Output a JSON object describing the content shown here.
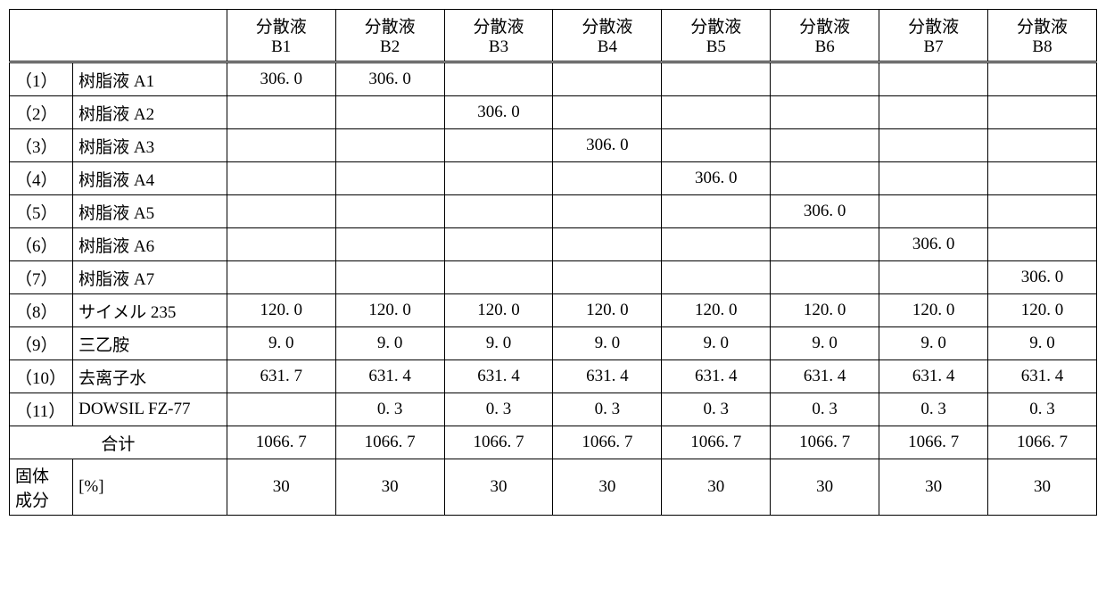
{
  "table": {
    "type": "table",
    "border_color": "#000000",
    "background_color": "#ffffff",
    "font_size_pt": 14,
    "header_line1": "分散液",
    "columns": [
      "B1",
      "B2",
      "B3",
      "B4",
      "B5",
      "B6",
      "B7",
      "B8"
    ],
    "rows": [
      {
        "idx": "（1）",
        "label": "树脂液 A1",
        "vals": [
          "306. 0",
          "306. 0",
          "",
          "",
          "",
          "",
          "",
          ""
        ]
      },
      {
        "idx": "（2）",
        "label": "树脂液 A2",
        "vals": [
          "",
          "",
          "306. 0",
          "",
          "",
          "",
          "",
          ""
        ]
      },
      {
        "idx": "（3）",
        "label": "树脂液 A3",
        "vals": [
          "",
          "",
          "",
          "306. 0",
          "",
          "",
          "",
          ""
        ]
      },
      {
        "idx": "（4）",
        "label": "树脂液 A4",
        "vals": [
          "",
          "",
          "",
          "",
          "306. 0",
          "",
          "",
          ""
        ]
      },
      {
        "idx": "（5）",
        "label": "树脂液 A5",
        "vals": [
          "",
          "",
          "",
          "",
          "",
          "306. 0",
          "",
          ""
        ]
      },
      {
        "idx": "（6）",
        "label": "树脂液 A6",
        "vals": [
          "",
          "",
          "",
          "",
          "",
          "",
          "306. 0",
          ""
        ]
      },
      {
        "idx": "（7）",
        "label": "树脂液 A7",
        "vals": [
          "",
          "",
          "",
          "",
          "",
          "",
          "",
          "306. 0"
        ]
      },
      {
        "idx": "（8）",
        "label": "サイメル 235",
        "vals": [
          "120. 0",
          "120. 0",
          "120. 0",
          "120. 0",
          "120. 0",
          "120. 0",
          "120. 0",
          "120. 0"
        ]
      },
      {
        "idx": "（9）",
        "label": "三乙胺",
        "vals": [
          "9. 0",
          "9. 0",
          "9. 0",
          "9. 0",
          "9. 0",
          "9. 0",
          "9. 0",
          "9. 0"
        ]
      },
      {
        "idx": "（10）",
        "label": "去离子水",
        "vals": [
          "631. 7",
          "631. 4",
          "631. 4",
          "631. 4",
          "631. 4",
          "631. 4",
          "631. 4",
          "631. 4"
        ]
      },
      {
        "idx": "（11）",
        "label": "DOWSIL FZ-77",
        "vals": [
          "",
          "0. 3",
          "0. 3",
          "0. 3",
          "0. 3",
          "0. 3",
          "0. 3",
          "0. 3"
        ]
      }
    ],
    "total_label": "合计",
    "total_vals": [
      "1066. 7",
      "1066. 7",
      "1066. 7",
      "1066. 7",
      "1066. 7",
      "1066. 7",
      "1066. 7",
      "1066. 7"
    ],
    "solid_label_1": "固体",
    "solid_label_2": "成分",
    "solid_unit": "[%]",
    "solid_vals": [
      "30",
      "30",
      "30",
      "30",
      "30",
      "30",
      "30",
      "30"
    ]
  }
}
